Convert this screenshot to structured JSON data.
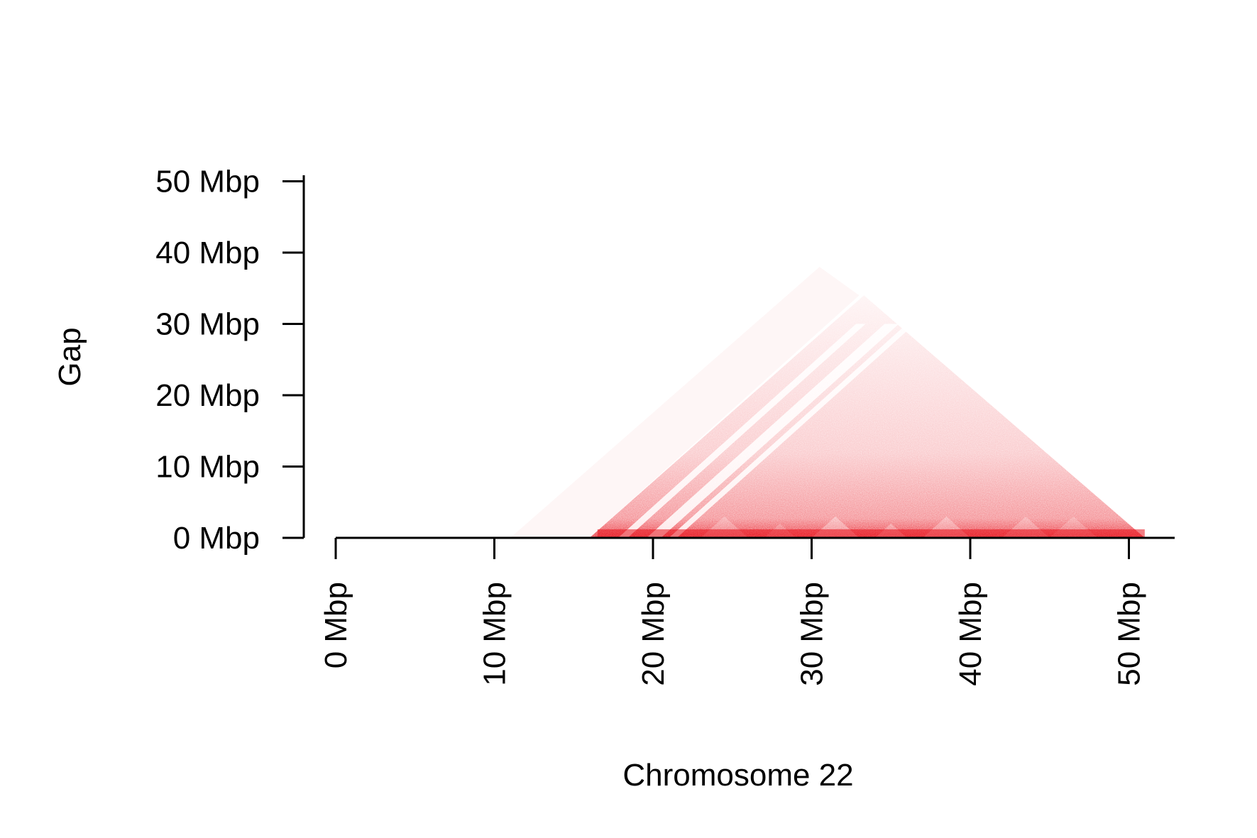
{
  "chart_data": {
    "type": "heatmap",
    "title": "",
    "xlabel": "Chromosome 22",
    "ylabel": "Gap",
    "x_ticks": [
      "0 Mbp",
      "10 Mbp",
      "20 Mbp",
      "30 Mbp",
      "40 Mbp",
      "50 Mbp"
    ],
    "y_ticks": [
      "0 Mbp",
      "10 Mbp",
      "20 Mbp",
      "30 Mbp",
      "40 Mbp",
      "50 Mbp"
    ],
    "x_tick_values": [
      0,
      10,
      20,
      30,
      40,
      50
    ],
    "y_tick_values": [
      0,
      10,
      20,
      30,
      40,
      50
    ],
    "xlim": [
      0,
      53
    ],
    "ylim": [
      0,
      50
    ],
    "units": "Mbp",
    "color": "#e8141e",
    "data_extent": {
      "start": 16,
      "end": 51
    },
    "x_tick_orientation": "vertical",
    "grid": false,
    "legend": "none"
  }
}
